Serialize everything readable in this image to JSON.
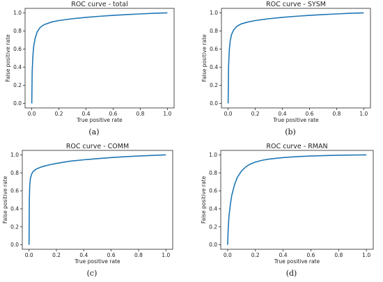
{
  "chart_data": [
    {
      "type": "line",
      "title": "ROC curve - total",
      "xlabel": "True positive rate",
      "ylabel": "False positive rate",
      "panel_label": "(a)",
      "xlim": [
        0,
        1
      ],
      "ylim": [
        0,
        1
      ],
      "xticks": [
        "0.0",
        "0.2",
        "0.4",
        "0.6",
        "0.8",
        "1.0"
      ],
      "yticks": [
        "0.0",
        "0.2",
        "0.4",
        "0.6",
        "0.8",
        "1.0"
      ],
      "grid": false,
      "series": [
        {
          "color": "#1f77b4",
          "x": [
            0,
            0.003,
            0.008,
            0.015,
            0.025,
            0.04,
            0.06,
            0.08,
            0.1,
            0.15,
            0.2,
            0.3,
            0.4,
            0.5,
            0.6,
            0.7,
            0.8,
            0.9,
            1.0
          ],
          "y": [
            0,
            0.35,
            0.52,
            0.64,
            0.72,
            0.79,
            0.835,
            0.86,
            0.875,
            0.9,
            0.915,
            0.935,
            0.95,
            0.962,
            0.972,
            0.981,
            0.988,
            0.995,
            1.0
          ]
        }
      ]
    },
    {
      "type": "line",
      "title": "ROC curve - SYSM",
      "xlabel": "True positive rate",
      "ylabel": "False positive rate",
      "panel_label": "(b)",
      "xlim": [
        0,
        1
      ],
      "ylim": [
        0,
        1
      ],
      "xticks": [
        "0.0",
        "0.2",
        "0.4",
        "0.6",
        "0.8",
        "1.0"
      ],
      "yticks": [
        "0.0",
        "0.2",
        "0.4",
        "0.6",
        "0.8",
        "1.0"
      ],
      "grid": false,
      "series": [
        {
          "color": "#1f77b4",
          "x": [
            0,
            0.003,
            0.008,
            0.015,
            0.025,
            0.04,
            0.06,
            0.08,
            0.1,
            0.15,
            0.2,
            0.3,
            0.4,
            0.5,
            0.6,
            0.7,
            0.8,
            0.9,
            1.0
          ],
          "y": [
            0,
            0.4,
            0.58,
            0.69,
            0.76,
            0.81,
            0.845,
            0.865,
            0.88,
            0.9,
            0.915,
            0.935,
            0.95,
            0.962,
            0.972,
            0.981,
            0.988,
            0.995,
            1.0
          ]
        }
      ]
    },
    {
      "type": "line",
      "title": "ROC curve - COMM",
      "xlabel": "True positive rate",
      "ylabel": "False positive rate",
      "panel_label": "(c)",
      "xlim": [
        0,
        1
      ],
      "ylim": [
        0,
        1
      ],
      "xticks": [
        "0.0",
        "0.2",
        "0.4",
        "0.6",
        "0.8",
        "1.0"
      ],
      "yticks": [
        "0.0",
        "0.2",
        "0.4",
        "0.6",
        "0.8",
        "1.0"
      ],
      "grid": false,
      "series": [
        {
          "color": "#1f77b4",
          "x": [
            0,
            0.002,
            0.005,
            0.01,
            0.02,
            0.03,
            0.05,
            0.08,
            0.1,
            0.15,
            0.2,
            0.3,
            0.4,
            0.5,
            0.6,
            0.7,
            0.8,
            0.9,
            1.0
          ],
          "y": [
            0,
            0.5,
            0.66,
            0.74,
            0.79,
            0.815,
            0.84,
            0.86,
            0.87,
            0.89,
            0.905,
            0.93,
            0.945,
            0.958,
            0.97,
            0.979,
            0.987,
            0.994,
            1.0
          ]
        }
      ]
    },
    {
      "type": "line",
      "title": "ROC curve - RMAN",
      "xlabel": "True positive rate",
      "ylabel": "False positive rate",
      "panel_label": "(d)",
      "xlim": [
        0,
        1
      ],
      "ylim": [
        0,
        1
      ],
      "xticks": [
        "0.0",
        "0.2",
        "0.4",
        "0.6",
        "0.8",
        "1.0"
      ],
      "yticks": [
        "0.0",
        "0.2",
        "0.4",
        "0.6",
        "0.8",
        "1.0"
      ],
      "grid": false,
      "series": [
        {
          "color": "#1f77b4",
          "x": [
            0,
            0.005,
            0.01,
            0.02,
            0.03,
            0.05,
            0.07,
            0.1,
            0.13,
            0.16,
            0.2,
            0.25,
            0.3,
            0.4,
            0.5,
            0.6,
            0.7,
            0.8,
            0.9,
            1.0
          ],
          "y": [
            0,
            0.2,
            0.32,
            0.45,
            0.55,
            0.67,
            0.75,
            0.82,
            0.865,
            0.895,
            0.92,
            0.94,
            0.953,
            0.97,
            0.98,
            0.987,
            0.992,
            0.996,
            0.998,
            1.0
          ]
        }
      ]
    }
  ]
}
